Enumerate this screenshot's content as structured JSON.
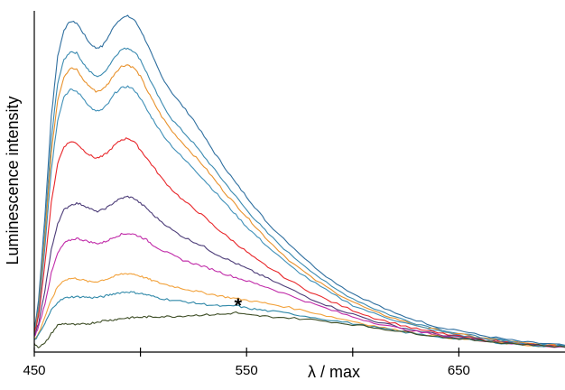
{
  "chart_data": {
    "type": "line",
    "xlabel": "λ / max",
    "ylabel": "Luminescence intensity",
    "xlim": [
      450,
      700
    ],
    "ylim": [
      0,
      1
    ],
    "x_ticks": [
      450,
      500,
      550,
      600,
      650
    ],
    "x_tick_labels": [
      "450",
      "",
      "550",
      "",
      "650"
    ],
    "y_ticks_shown": false,
    "grid": false,
    "legend": "none",
    "annotation": {
      "text": "*",
      "x": 546,
      "y": 0.14
    },
    "x": [
      450,
      452,
      455,
      458,
      461,
      464,
      467,
      470,
      473,
      476,
      479,
      482,
      485,
      488,
      491,
      494,
      497,
      500,
      503,
      506,
      510,
      515,
      520,
      525,
      530,
      535,
      540,
      545,
      550,
      555,
      560,
      570,
      580,
      590,
      600,
      610,
      620,
      630,
      640,
      650,
      660,
      670,
      680,
      690,
      700
    ],
    "series": [
      {
        "color": "#2f6f9f",
        "values": [
          0.06,
          0.15,
          0.4,
          0.7,
          0.88,
          0.96,
          0.985,
          0.98,
          0.95,
          0.92,
          0.905,
          0.91,
          0.94,
          0.975,
          0.995,
          1.0,
          0.99,
          0.96,
          0.92,
          0.875,
          0.82,
          0.77,
          0.73,
          0.69,
          0.64,
          0.59,
          0.545,
          0.5,
          0.46,
          0.42,
          0.38,
          0.32,
          0.26,
          0.21,
          0.17,
          0.14,
          0.11,
          0.09,
          0.07,
          0.06,
          0.045,
          0.035,
          0.025,
          0.02,
          0.015
        ]
      },
      {
        "color": "#3a8ab0",
        "values": [
          0.05,
          0.13,
          0.36,
          0.63,
          0.8,
          0.87,
          0.895,
          0.89,
          0.86,
          0.835,
          0.82,
          0.825,
          0.85,
          0.88,
          0.9,
          0.905,
          0.895,
          0.87,
          0.83,
          0.79,
          0.74,
          0.69,
          0.655,
          0.62,
          0.58,
          0.54,
          0.5,
          0.46,
          0.42,
          0.385,
          0.35,
          0.29,
          0.24,
          0.19,
          0.155,
          0.125,
          0.1,
          0.08,
          0.065,
          0.05,
          0.04,
          0.03,
          0.022,
          0.017,
          0.013
        ]
      },
      {
        "color": "#e8912b",
        "values": [
          0.05,
          0.12,
          0.34,
          0.59,
          0.75,
          0.82,
          0.845,
          0.84,
          0.81,
          0.79,
          0.775,
          0.78,
          0.8,
          0.83,
          0.85,
          0.855,
          0.845,
          0.82,
          0.78,
          0.745,
          0.7,
          0.655,
          0.62,
          0.585,
          0.55,
          0.51,
          0.47,
          0.435,
          0.4,
          0.365,
          0.33,
          0.27,
          0.22,
          0.18,
          0.145,
          0.115,
          0.095,
          0.075,
          0.06,
          0.048,
          0.038,
          0.029,
          0.021,
          0.016,
          0.012
        ]
      },
      {
        "color": "#3e8fb7",
        "values": [
          0.05,
          0.11,
          0.31,
          0.54,
          0.69,
          0.76,
          0.78,
          0.775,
          0.755,
          0.73,
          0.715,
          0.72,
          0.74,
          0.77,
          0.785,
          0.79,
          0.78,
          0.755,
          0.72,
          0.69,
          0.65,
          0.61,
          0.575,
          0.545,
          0.51,
          0.475,
          0.44,
          0.405,
          0.37,
          0.34,
          0.31,
          0.255,
          0.21,
          0.17,
          0.135,
          0.11,
          0.09,
          0.072,
          0.058,
          0.046,
          0.036,
          0.028,
          0.02,
          0.015,
          0.011
        ]
      },
      {
        "color": "#e8262a",
        "values": [
          0.05,
          0.1,
          0.26,
          0.44,
          0.56,
          0.61,
          0.625,
          0.62,
          0.6,
          0.585,
          0.575,
          0.58,
          0.595,
          0.615,
          0.63,
          0.635,
          0.625,
          0.6,
          0.575,
          0.55,
          0.515,
          0.48,
          0.45,
          0.425,
          0.4,
          0.37,
          0.345,
          0.32,
          0.295,
          0.27,
          0.25,
          0.21,
          0.175,
          0.145,
          0.12,
          0.097,
          0.08,
          0.064,
          0.052,
          0.042,
          0.033,
          0.026,
          0.019,
          0.014,
          0.01
        ]
      },
      {
        "color": "#4c3c78",
        "values": [
          0.04,
          0.08,
          0.18,
          0.3,
          0.38,
          0.42,
          0.435,
          0.44,
          0.435,
          0.425,
          0.415,
          0.42,
          0.43,
          0.445,
          0.455,
          0.46,
          0.455,
          0.44,
          0.425,
          0.405,
          0.385,
          0.36,
          0.34,
          0.325,
          0.31,
          0.29,
          0.275,
          0.26,
          0.245,
          0.23,
          0.215,
          0.185,
          0.155,
          0.13,
          0.108,
          0.088,
          0.072,
          0.059,
          0.048,
          0.039,
          0.031,
          0.024,
          0.018,
          0.013,
          0.01
        ]
      },
      {
        "color": "#c02aa8",
        "values": [
          0.04,
          0.07,
          0.14,
          0.23,
          0.29,
          0.32,
          0.33,
          0.335,
          0.33,
          0.325,
          0.32,
          0.322,
          0.33,
          0.34,
          0.347,
          0.35,
          0.347,
          0.34,
          0.33,
          0.315,
          0.3,
          0.285,
          0.27,
          0.26,
          0.25,
          0.24,
          0.228,
          0.218,
          0.208,
          0.198,
          0.188,
          0.165,
          0.142,
          0.12,
          0.1,
          0.083,
          0.068,
          0.056,
          0.046,
          0.037,
          0.03,
          0.023,
          0.017,
          0.013,
          0.009
        ]
      },
      {
        "color": "#f2a23c",
        "values": [
          0.03,
          0.05,
          0.1,
          0.15,
          0.19,
          0.21,
          0.215,
          0.215,
          0.21,
          0.205,
          0.205,
          0.21,
          0.215,
          0.222,
          0.228,
          0.23,
          0.228,
          0.222,
          0.215,
          0.208,
          0.2,
          0.192,
          0.185,
          0.178,
          0.172,
          0.166,
          0.16,
          0.155,
          0.15,
          0.145,
          0.14,
          0.128,
          0.115,
          0.1,
          0.087,
          0.073,
          0.061,
          0.051,
          0.042,
          0.034,
          0.028,
          0.022,
          0.016,
          0.012,
          0.009
        ]
      },
      {
        "color": "#2f88a8",
        "values": [
          0.03,
          0.045,
          0.08,
          0.12,
          0.145,
          0.155,
          0.16,
          0.16,
          0.16,
          0.158,
          0.158,
          0.16,
          0.165,
          0.17,
          0.173,
          0.175,
          0.173,
          0.17,
          0.166,
          0.161,
          0.155,
          0.15,
          0.146,
          0.142,
          0.138,
          0.134,
          0.131,
          0.134,
          0.126,
          0.122,
          0.118,
          0.11,
          0.1,
          0.09,
          0.08,
          0.069,
          0.058,
          0.049,
          0.041,
          0.034,
          0.028,
          0.022,
          0.017,
          0.013,
          0.009
        ]
      },
      {
        "color": "#3d4d25",
        "values": [
          0.02,
          0.01,
          0.02,
          0.05,
          0.075,
          0.08,
          0.078,
          0.076,
          0.078,
          0.08,
          0.084,
          0.088,
          0.09,
          0.092,
          0.095,
          0.097,
          0.098,
          0.099,
          0.1,
          0.1,
          0.101,
          0.101,
          0.103,
          0.105,
          0.106,
          0.107,
          0.108,
          0.113,
          0.106,
          0.103,
          0.101,
          0.097,
          0.092,
          0.085,
          0.077,
          0.068,
          0.059,
          0.05,
          0.042,
          0.035,
          0.029,
          0.023,
          0.018,
          0.014,
          0.01
        ]
      }
    ]
  }
}
